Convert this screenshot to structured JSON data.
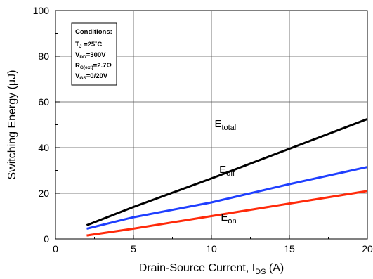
{
  "chart_data": {
    "type": "line",
    "xlabel": "Drain-Source Current, I",
    "xlabel_sub": "DS",
    "xlabel_unit": " (A)",
    "ylabel": "Switching Energy (μJ)",
    "xlim": [
      0,
      20
    ],
    "ylim": [
      0,
      100
    ],
    "x_ticks": [
      0,
      5,
      10,
      15,
      20
    ],
    "y_ticks": [
      0,
      20,
      40,
      60,
      80,
      100
    ],
    "grid": true,
    "series": [
      {
        "name": "E",
        "name_sub": "total",
        "color": "#000000",
        "x": [
          2,
          5,
          10,
          15,
          20
        ],
        "values": [
          6.0,
          14.0,
          26.5,
          39.5,
          52.5
        ]
      },
      {
        "name": "E",
        "name_sub": "off",
        "color": "#1f3fff",
        "x": [
          2,
          5,
          10,
          15,
          20
        ],
        "values": [
          4.5,
          9.5,
          16.0,
          24.0,
          31.5
        ]
      },
      {
        "name": "E",
        "name_sub": "on",
        "color": "#ff2a0a",
        "x": [
          2,
          5,
          10,
          15,
          20
        ],
        "values": [
          1.5,
          4.5,
          10.0,
          15.5,
          21.0
        ]
      }
    ],
    "annotation": {
      "title": "Conditions:",
      "lines": [
        {
          "main": "T",
          "sub": "J",
          "rest": " =25˚C"
        },
        {
          "main": "V",
          "sub": "DD",
          "rest": "=300V"
        },
        {
          "main": "R",
          "sub": "G(ext)",
          "rest": "=2.7Ω"
        },
        {
          "main": "V",
          "sub": "GS",
          "rest": "=0/20V"
        }
      ]
    }
  }
}
